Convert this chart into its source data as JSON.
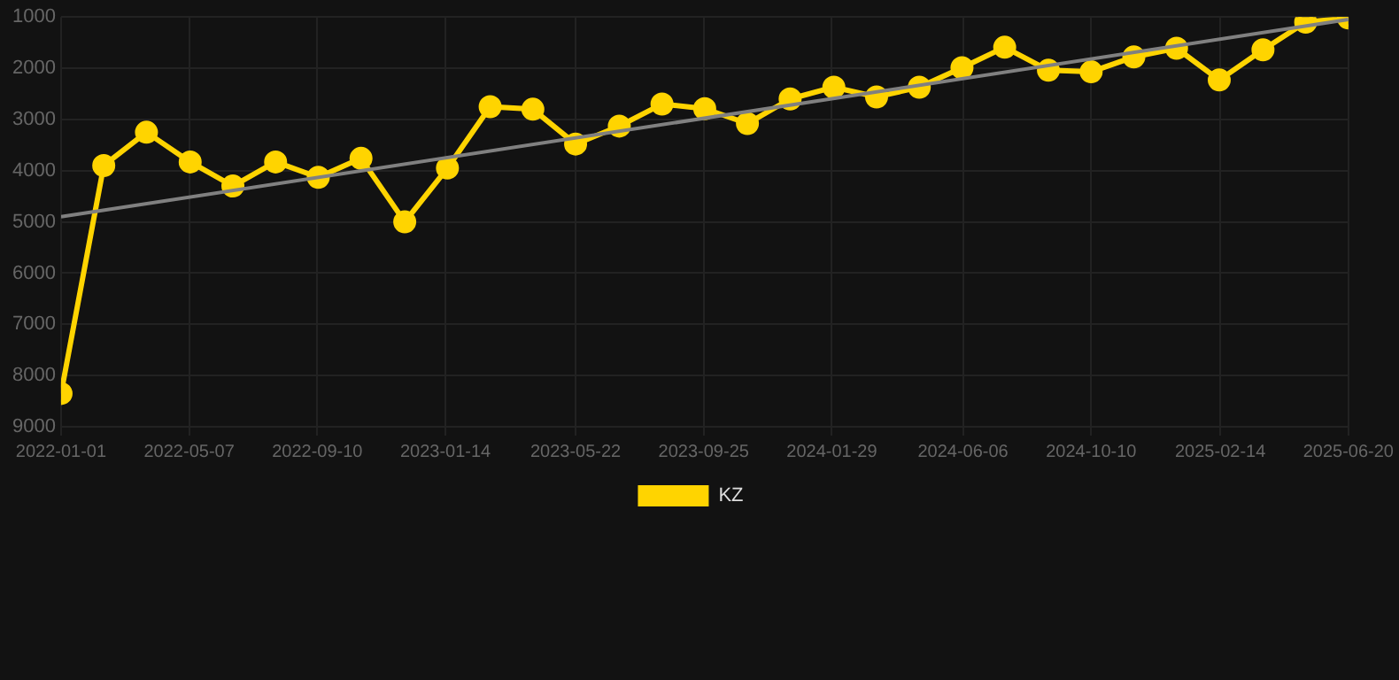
{
  "chart_data": {
    "type": "line",
    "xlim": [
      "2022-01-01",
      "2025-06-20"
    ],
    "xticks": [
      "2022-01-01",
      "2022-05-07",
      "2022-09-10",
      "2023-01-14",
      "2023-05-22",
      "2023-09-25",
      "2024-01-29",
      "2024-06-06",
      "2024-10-10",
      "2025-02-14",
      "2025-06-20"
    ],
    "ylim": [
      9000,
      1000
    ],
    "yticks": [
      1000,
      2000,
      3000,
      4000,
      5000,
      6000,
      7000,
      8000,
      9000
    ],
    "grid": true,
    "legend": "bottom",
    "marker": "circle",
    "line_style": "solid",
    "series": [
      {
        "name": "KZ",
        "color": "#ffd400",
        "x": [
          "2022-01-01",
          "2022-02-12",
          "2022-03-26",
          "2022-05-08",
          "2022-06-19",
          "2022-07-31",
          "2022-09-11",
          "2022-10-23",
          "2022-12-05",
          "2023-01-16",
          "2023-02-27",
          "2023-04-10",
          "2023-05-22",
          "2023-07-04",
          "2023-08-15",
          "2023-09-26",
          "2023-11-07",
          "2023-12-19",
          "2024-01-31",
          "2024-03-13",
          "2024-04-24",
          "2024-06-05",
          "2024-07-17",
          "2024-08-29",
          "2024-10-10",
          "2024-11-21",
          "2025-01-02",
          "2025-02-13",
          "2025-03-28",
          "2025-05-09",
          "2025-06-20"
        ],
        "values": [
          8350,
          3900,
          3250,
          3830,
          4300,
          3830,
          4130,
          3760,
          5000,
          3950,
          2750,
          2800,
          3480,
          3130,
          2700,
          2790,
          3080,
          2600,
          2370,
          2560,
          2370,
          1990,
          1590,
          2040,
          2070,
          1780,
          1610,
          2230,
          1640,
          1100,
          1020
        ]
      },
      {
        "type": "line",
        "color": "#808080",
        "marker": "none",
        "x": [
          "2022-01-01",
          "2025-06-20"
        ],
        "values": [
          4900,
          1050
        ]
      }
    ]
  }
}
